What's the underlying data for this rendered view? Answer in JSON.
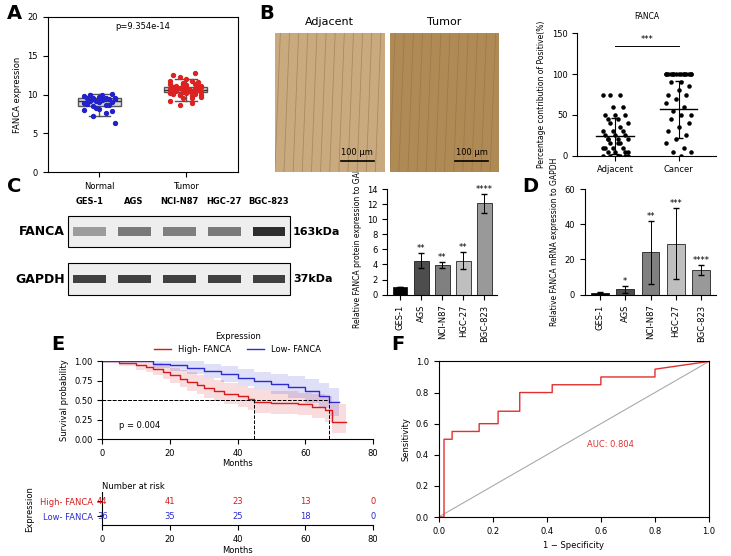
{
  "chart_data": [
    {
      "panel": "A",
      "type": "box_scatter",
      "categories": [
        "Normal",
        "Tumor"
      ],
      "ylabel": "FANCA expression",
      "ylim": [
        0,
        20
      ],
      "yticks": [
        0,
        5,
        10,
        15,
        20
      ],
      "annotation": "p=9.354e-14",
      "colors": [
        "#2222cc",
        "#dd2222"
      ],
      "values": [
        [
          9.8,
          9.6,
          9.5,
          9.4,
          9.3,
          9.2,
          9.1,
          9.0,
          8.8,
          8.6,
          8.3,
          8.0,
          7.6,
          7.2,
          6.3,
          9.9,
          10.0,
          10.1,
          9.7,
          9.5,
          9.4,
          9.2,
          8.9,
          8.7,
          8.5,
          9.6,
          9.3,
          9.9,
          7.9,
          8.2
        ],
        [
          10.2,
          10.5,
          10.8,
          11.0,
          10.4,
          10.6,
          10.9,
          11.2,
          10.1,
          10.3,
          10.7,
          11.4,
          9.8,
          10.0,
          10.5,
          10.6,
          11.1,
          11.6,
          12.0,
          12.5,
          12.8,
          9.5,
          9.2,
          8.9,
          8.6,
          10.3,
          10.4,
          10.6,
          10.8,
          10.9,
          11.0,
          11.3,
          11.5,
          11.8,
          10.2,
          10.0,
          9.9,
          10.7,
          10.5,
          10.6,
          11.2,
          10.4,
          10.1,
          10.3,
          10.8,
          11.7,
          12.2,
          9.7,
          10.6,
          10.9,
          11.0,
          10.2,
          10.5,
          10.7,
          11.4,
          10.3,
          9.6,
          10.8,
          11.1,
          10.5
        ]
      ]
    },
    {
      "type": "dot",
      "title": "FANCA",
      "significance": "***",
      "categories": [
        "Adjacent",
        "Cancer"
      ],
      "ylabel": "Percentage contribution of Positive(%)",
      "ylim": [
        0,
        150
      ],
      "yticks": [
        0,
        50,
        100,
        150
      ],
      "color": "#000000",
      "values": [
        24,
        57
      ],
      "errors": [
        22,
        35
      ],
      "points": [
        [
          0,
          0,
          0,
          0,
          0,
          5,
          5,
          5,
          10,
          10,
          10,
          10,
          15,
          15,
          20,
          20,
          20,
          25,
          25,
          25,
          30,
          30,
          30,
          35,
          40,
          40,
          45,
          45,
          50,
          50,
          50,
          60,
          60,
          75,
          75,
          75,
          5,
          15,
          20,
          0
        ],
        [
          100,
          100,
          100,
          100,
          100,
          100,
          100,
          100,
          100,
          100,
          100,
          100,
          100,
          100,
          100,
          90,
          90,
          85,
          80,
          75,
          75,
          70,
          65,
          60,
          55,
          50,
          50,
          45,
          40,
          35,
          30,
          25,
          20,
          15,
          10,
          5,
          5,
          0
        ]
      ]
    },
    {
      "type": "bar",
      "categories": [
        "GES-1",
        "AGS",
        "NCI-N87",
        "HGC-27",
        "BGC-823"
      ],
      "ylabel": "Relative FANCA protein expression to GAPDH",
      "ylim": [
        0,
        14
      ],
      "yticks": [
        0,
        2,
        4,
        6,
        8,
        10,
        12,
        14
      ],
      "values": [
        1,
        4.5,
        3.9,
        4.5,
        12.1
      ],
      "errors": [
        0,
        1.0,
        0.4,
        1.1,
        1.3
      ],
      "significance": [
        null,
        "**",
        "**",
        "**",
        "****"
      ],
      "colors": [
        "#000000",
        "#4d4d4d",
        "#808080",
        "#bfbfbf",
        "#999999"
      ]
    },
    {
      "panel": "D",
      "type": "bar",
      "categories": [
        "GES-1",
        "AGS",
        "NCI-N87",
        "HGC-27",
        "BGC-823"
      ],
      "ylabel": "Relative FANCA mRNA expression to GAPDH",
      "ylim": [
        0,
        60
      ],
      "yticks": [
        0,
        20,
        40,
        60
      ],
      "values": [
        1,
        3,
        24,
        29,
        14
      ],
      "errors": [
        0.3,
        2,
        18,
        20,
        3
      ],
      "significance": [
        null,
        "*",
        "**",
        "***",
        "****"
      ],
      "colors": [
        "#000000",
        "#4d4d4d",
        "#808080",
        "#bfbfbf",
        "#999999"
      ]
    },
    {
      "panel": "E",
      "type": "survival",
      "xlabel": "Months",
      "ylabel": "Survival probability",
      "xlim": [
        0,
        80
      ],
      "xticks": [
        0,
        20,
        40,
        60,
        80
      ],
      "ylim": [
        0,
        1
      ],
      "yticks": [
        {
          "value": 0,
          "label": "0.00"
        },
        {
          "value": 0.25,
          "label": "0.25"
        },
        {
          "value": 0.5,
          "label": "0.50"
        },
        {
          "value": 0.75,
          "label": "0.75"
        },
        {
          "value": 1,
          "label": "1.00"
        }
      ],
      "annotation": "p = 0.004",
      "legend": "lower center",
      "legend_title": "Expression",
      "median_level": 0.5,
      "series": [
        {
          "name": "High- FANCA",
          "color": "#d7191c",
          "median": 45,
          "x": [
            0,
            5,
            10,
            13,
            15,
            18,
            20,
            23,
            25,
            28,
            30,
            33,
            36,
            40,
            43,
            45,
            50,
            55,
            58,
            62,
            66,
            68,
            72
          ],
          "values": [
            1.0,
            0.98,
            0.95,
            0.93,
            0.9,
            0.86,
            0.82,
            0.78,
            0.74,
            0.7,
            0.66,
            0.62,
            0.58,
            0.55,
            0.52,
            0.48,
            0.47,
            0.47,
            0.45,
            0.42,
            0.38,
            0.22,
            0.22
          ],
          "lower": [
            1.0,
            0.94,
            0.89,
            0.86,
            0.82,
            0.77,
            0.72,
            0.67,
            0.62,
            0.58,
            0.53,
            0.49,
            0.45,
            0.41,
            0.38,
            0.34,
            0.33,
            0.33,
            0.31,
            0.27,
            0.22,
            0.08,
            0.08
          ],
          "upper": [
            1.0,
            1.0,
            1.0,
            1.0,
            0.98,
            0.95,
            0.92,
            0.89,
            0.86,
            0.83,
            0.79,
            0.76,
            0.72,
            0.69,
            0.66,
            0.63,
            0.62,
            0.62,
            0.6,
            0.58,
            0.55,
            0.45,
            0.45
          ]
        },
        {
          "name": "Low- FANCA",
          "color": "#2c2cd0",
          "median": 67,
          "x": [
            0,
            12,
            15,
            20,
            25,
            30,
            35,
            40,
            45,
            50,
            55,
            60,
            64,
            67,
            70
          ],
          "values": [
            1.0,
            1.0,
            0.97,
            0.95,
            0.92,
            0.88,
            0.84,
            0.79,
            0.75,
            0.71,
            0.67,
            0.62,
            0.56,
            0.48,
            0.48
          ],
          "lower": [
            1.0,
            1.0,
            0.92,
            0.88,
            0.84,
            0.79,
            0.74,
            0.68,
            0.63,
            0.58,
            0.53,
            0.47,
            0.4,
            0.3,
            0.3
          ],
          "upper": [
            1.0,
            1.0,
            1.0,
            1.0,
            1.0,
            0.97,
            0.94,
            0.9,
            0.87,
            0.84,
            0.81,
            0.77,
            0.72,
            0.66,
            0.66
          ]
        }
      ],
      "risk_table": {
        "title": "Number at risk",
        "ylabel": "Expression",
        "xlabel": "Months",
        "xlim": [
          0,
          80
        ],
        "xticks": [
          0,
          20,
          40,
          60,
          80
        ],
        "times": [
          0,
          20,
          40,
          60,
          80
        ],
        "rows": [
          {
            "name": "High- FANCA",
            "color": "#d7191c",
            "values": [
              44,
              41,
              23,
              13,
              0
            ]
          },
          {
            "name": "Low- FANCA",
            "color": "#2c2cd0",
            "values": [
              36,
              35,
              25,
              18,
              0
            ]
          }
        ]
      }
    },
    {
      "panel": "F",
      "type": "roc",
      "xlabel": "1 − Specificity",
      "ylabel": "Sensitivity",
      "xlim": [
        0,
        1
      ],
      "ylim": [
        0,
        1
      ],
      "xticks": [
        0.0,
        0.2,
        0.4,
        0.6,
        0.8,
        1.0
      ],
      "yticks": [
        0.0,
        0.2,
        0.4,
        0.6,
        0.8,
        1.0
      ],
      "annotation": "AUC: 0.804",
      "color": "#e03030",
      "x": [
        0,
        0.02,
        0.02,
        0.05,
        0.05,
        0.15,
        0.15,
        0.22,
        0.22,
        0.3,
        0.3,
        0.42,
        0.42,
        0.6,
        0.6,
        0.8,
        0.8,
        1.0
      ],
      "values": [
        0,
        0,
        0.5,
        0.5,
        0.55,
        0.55,
        0.6,
        0.6,
        0.68,
        0.68,
        0.8,
        0.8,
        0.85,
        0.85,
        0.9,
        0.9,
        0.95,
        1.0
      ]
    }
  ],
  "images": {
    "panel": "B",
    "items": [
      {
        "title": "Adjacent",
        "scale_bar": "100 μm"
      },
      {
        "title": "Tumor",
        "scale_bar": "100 μm"
      }
    ]
  },
  "blot": {
    "panel": "C",
    "lanes": [
      "GES-1",
      "AGS",
      "NCI-N87",
      "HGC-27",
      "BGC-823"
    ],
    "bands": [
      {
        "name": "FANCA",
        "size": "163kDa"
      },
      {
        "name": "GAPDH",
        "size": "37kDa"
      }
    ]
  }
}
